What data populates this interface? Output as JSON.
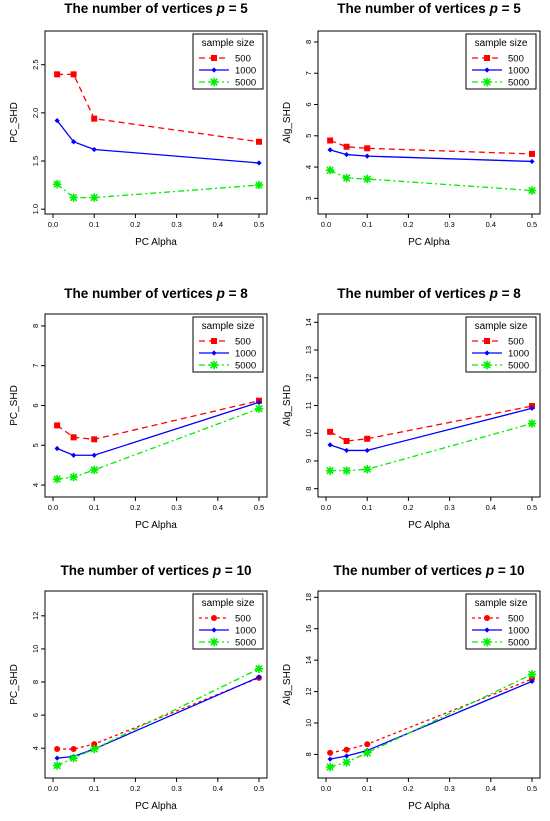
{
  "chart_data": [
    {
      "type": "line",
      "title": "The number of vertices",
      "title_var": "p",
      "title_eq": "= 5",
      "xlabel": "PC Alpha",
      "ylabel": "PC_SHD",
      "xlim": [
        0,
        0.5
      ],
      "ylim": [
        0.95,
        2.85
      ],
      "xticks": [
        "0.0",
        "0.1",
        "0.2",
        "0.3",
        "0.4",
        "0.5"
      ],
      "yticks": [
        "1.0",
        "1.5",
        "2.0",
        "2.5"
      ],
      "x": [
        0.01,
        0.05,
        0.1,
        0.5
      ],
      "legend_title": "sample size",
      "legend_position": "top-right",
      "grid": false,
      "series": [
        {
          "name": "500",
          "color": "#ff0000",
          "marker": "square",
          "dash": "6,4",
          "values": [
            2.4,
            2.4,
            1.94,
            1.7
          ]
        },
        {
          "name": "1000",
          "color": "#0000ff",
          "marker": "diamond",
          "dash": "",
          "values": [
            1.92,
            1.7,
            1.62,
            1.48
          ]
        },
        {
          "name": "5000",
          "color": "#00ee00",
          "marker": "asterisk",
          "dash": "6,3,2,3",
          "values": [
            1.26,
            1.12,
            1.12,
            1.25
          ]
        }
      ]
    },
    {
      "type": "line",
      "title": "The number of vertices",
      "title_var": "p",
      "title_eq": "= 5",
      "xlabel": "PC Alpha",
      "ylabel": "Alg_SHD",
      "xlim": [
        0,
        0.5
      ],
      "ylim": [
        2.5,
        8.35
      ],
      "xticks": [
        "0.0",
        "0.1",
        "0.2",
        "0.3",
        "0.4",
        "0.5"
      ],
      "yticks": [
        "3",
        "4",
        "5",
        "6",
        "7",
        "8"
      ],
      "x": [
        0.01,
        0.05,
        0.1,
        0.5
      ],
      "legend_title": "sample size",
      "legend_position": "top-right",
      "grid": false,
      "series": [
        {
          "name": "500",
          "color": "#ff0000",
          "marker": "square",
          "dash": "6,4",
          "values": [
            4.85,
            4.65,
            4.6,
            4.42
          ]
        },
        {
          "name": "1000",
          "color": "#0000ff",
          "marker": "diamond",
          "dash": "",
          "values": [
            4.55,
            4.4,
            4.35,
            4.18
          ]
        },
        {
          "name": "5000",
          "color": "#00ee00",
          "marker": "asterisk",
          "dash": "6,3,2,3",
          "values": [
            3.9,
            3.65,
            3.62,
            3.25
          ]
        }
      ]
    },
    {
      "type": "line",
      "title": "The number of vertices",
      "title_var": "p",
      "title_eq": "= 8",
      "xlabel": "PC Alpha",
      "ylabel": "PC_SHD",
      "xlim": [
        0,
        0.5
      ],
      "ylim": [
        3.7,
        8.3
      ],
      "xticks": [
        "0.0",
        "0.1",
        "0.2",
        "0.3",
        "0.4",
        "0.5"
      ],
      "yticks": [
        "4",
        "5",
        "6",
        "7",
        "8"
      ],
      "x": [
        0.01,
        0.05,
        0.1,
        0.5
      ],
      "legend_title": "sample size",
      "legend_position": "top-right",
      "grid": false,
      "series": [
        {
          "name": "500",
          "color": "#ff0000",
          "marker": "square",
          "dash": "6,4",
          "values": [
            5.5,
            5.2,
            5.15,
            6.12
          ]
        },
        {
          "name": "1000",
          "color": "#0000ff",
          "marker": "diamond",
          "dash": "",
          "values": [
            4.92,
            4.75,
            4.75,
            6.08
          ]
        },
        {
          "name": "5000",
          "color": "#00ee00",
          "marker": "asterisk",
          "dash": "6,3,2,3",
          "values": [
            4.15,
            4.2,
            4.38,
            5.92
          ]
        }
      ]
    },
    {
      "type": "line",
      "title": "The number of vertices",
      "title_var": "p",
      "title_eq": "= 8",
      "xlabel": "PC Alpha",
      "ylabel": "Alg_SHD",
      "xlim": [
        0,
        0.5
      ],
      "ylim": [
        7.7,
        14.3
      ],
      "xticks": [
        "0.0",
        "0.1",
        "0.2",
        "0.3",
        "0.4",
        "0.5"
      ],
      "yticks": [
        "8",
        "9",
        "10",
        "11",
        "12",
        "13",
        "14"
      ],
      "x": [
        0.01,
        0.05,
        0.1,
        0.5
      ],
      "legend_title": "sample size",
      "legend_position": "top-right",
      "grid": false,
      "series": [
        {
          "name": "500",
          "color": "#ff0000",
          "marker": "square",
          "dash": "6,4",
          "values": [
            10.05,
            9.72,
            9.8,
            10.98
          ]
        },
        {
          "name": "1000",
          "color": "#0000ff",
          "marker": "diamond",
          "dash": "",
          "values": [
            9.58,
            9.38,
            9.38,
            10.9
          ]
        },
        {
          "name": "5000",
          "color": "#00ee00",
          "marker": "asterisk",
          "dash": "6,3,2,3",
          "values": [
            8.65,
            8.65,
            8.7,
            10.35
          ]
        }
      ]
    },
    {
      "type": "line",
      "title": "The number of vertices",
      "title_var": "p",
      "title_eq": "= 10",
      "xlabel": "PC Alpha",
      "ylabel": "PC_SHD",
      "xlim": [
        0,
        0.5
      ],
      "ylim": [
        2.2,
        13.5
      ],
      "xticks": [
        "0.0",
        "0.1",
        "0.2",
        "0.3",
        "0.4",
        "0.5"
      ],
      "yticks": [
        "4",
        "6",
        "8",
        "10",
        "12"
      ],
      "x": [
        0.01,
        0.05,
        0.1,
        0.5
      ],
      "legend_title": "sample size",
      "legend_position": "top-right",
      "grid": false,
      "series": [
        {
          "name": "500",
          "color": "#ff0000",
          "marker": "circle",
          "dash": "3,3",
          "values": [
            3.95,
            3.95,
            4.25,
            8.25
          ]
        },
        {
          "name": "1000",
          "color": "#0000ff",
          "marker": "diamond",
          "dash": "",
          "values": [
            3.4,
            3.5,
            3.95,
            8.3
          ]
        },
        {
          "name": "5000",
          "color": "#00ee00",
          "marker": "asterisk",
          "dash": "6,3,2,3",
          "values": [
            2.95,
            3.4,
            3.95,
            8.8
          ]
        }
      ]
    },
    {
      "type": "line",
      "title": "The number of vertices",
      "title_var": "p",
      "title_eq": "= 10",
      "xlabel": "PC Alpha",
      "ylabel": "Alg_SHD",
      "xlim": [
        0,
        0.5
      ],
      "ylim": [
        6.5,
        18.4
      ],
      "xticks": [
        "0.0",
        "0.1",
        "0.2",
        "0.3",
        "0.4",
        "0.5"
      ],
      "yticks": [
        "8",
        "10",
        "12",
        "14",
        "16",
        "18"
      ],
      "x": [
        0.01,
        0.05,
        0.1,
        0.5
      ],
      "legend_title": "sample size",
      "legend_position": "top-right",
      "grid": false,
      "series": [
        {
          "name": "500",
          "color": "#ff0000",
          "marker": "circle",
          "dash": "3,3",
          "values": [
            8.1,
            8.3,
            8.65,
            12.8
          ]
        },
        {
          "name": "1000",
          "color": "#0000ff",
          "marker": "diamond",
          "dash": "",
          "values": [
            7.7,
            7.9,
            8.25,
            12.65
          ]
        },
        {
          "name": "5000",
          "color": "#00ee00",
          "marker": "asterisk",
          "dash": "6,3,2,3",
          "values": [
            7.2,
            7.5,
            8.1,
            13.1
          ]
        }
      ]
    }
  ]
}
